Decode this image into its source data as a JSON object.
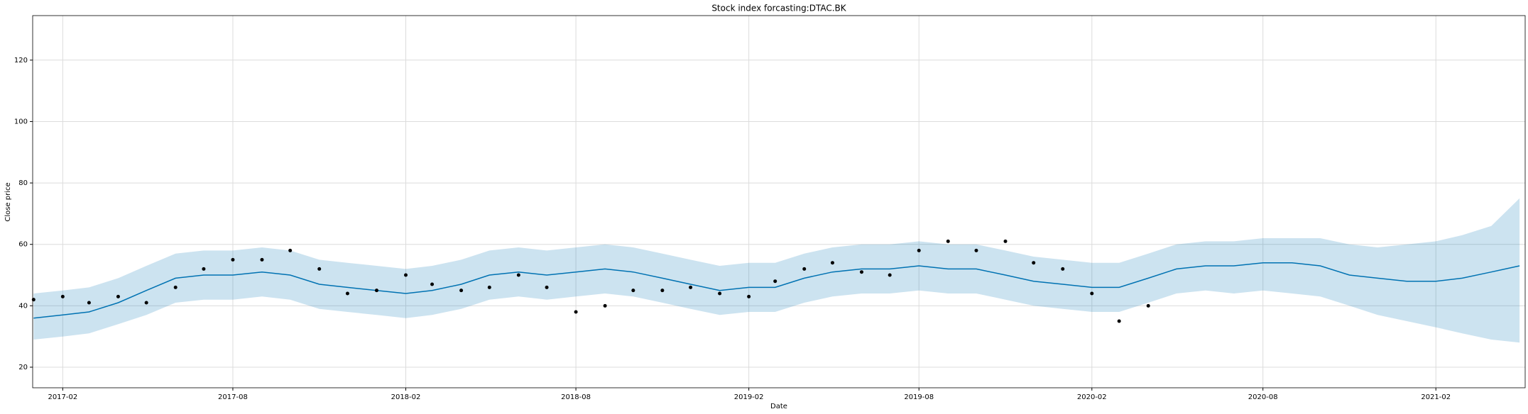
{
  "chart_data": {
    "type": "forecast",
    "title": "Stock index forcasting:DTAC.BK",
    "x_label": "Date",
    "y_label": "Close price",
    "x": [
      "2017-01",
      "2017-02",
      "2017-03",
      "2017-04",
      "2017-05",
      "2017-06",
      "2017-07",
      "2017-08",
      "2017-09",
      "2017-10",
      "2017-11",
      "2017-12",
      "2018-01",
      "2018-02",
      "2018-03",
      "2018-04",
      "2018-05",
      "2018-06",
      "2018-07",
      "2018-08",
      "2018-09",
      "2018-10",
      "2018-11",
      "2018-12",
      "2019-01",
      "2019-02",
      "2019-03",
      "2019-04",
      "2019-05",
      "2019-06",
      "2019-07",
      "2019-08",
      "2019-09",
      "2019-10",
      "2019-11",
      "2019-12",
      "2020-01",
      "2020-02",
      "2020-03",
      "2020-04",
      "2020-05",
      "2020-06",
      "2020-07",
      "2020-08",
      "2020-09",
      "2020-10",
      "2020-11",
      "2020-12",
      "2021-01",
      "2021-02",
      "2021-03",
      "2021-04",
      "2021-05"
    ],
    "series": [
      {
        "type": "band",
        "color": "#0072b2",
        "upper": [
          44,
          45,
          46,
          49,
          53,
          57,
          58,
          58,
          59,
          58,
          55,
          54,
          53,
          52,
          53,
          55,
          58,
          59,
          58,
          59,
          60,
          59,
          57,
          55,
          53,
          54,
          54,
          57,
          59,
          60,
          60,
          61,
          60,
          60,
          58,
          56,
          55,
          54,
          54,
          57,
          60,
          61,
          61,
          62,
          62,
          62,
          60,
          59,
          60,
          61,
          63,
          66,
          75
        ],
        "lower": [
          29,
          30,
          31,
          34,
          37,
          41,
          42,
          42,
          43,
          42,
          39,
          38,
          37,
          36,
          37,
          39,
          42,
          43,
          42,
          43,
          44,
          43,
          41,
          39,
          37,
          38,
          38,
          41,
          43,
          44,
          44,
          45,
          44,
          44,
          42,
          40,
          39,
          38,
          38,
          41,
          44,
          45,
          44,
          45,
          44,
          43,
          40,
          37,
          35,
          33,
          31,
          29,
          28
        ]
      },
      {
        "type": "line",
        "color": "#0072b2",
        "values": [
          36,
          37,
          38,
          41,
          45,
          49,
          50,
          50,
          51,
          50,
          47,
          46,
          45,
          44,
          45,
          47,
          50,
          51,
          50,
          51,
          52,
          51,
          49,
          47,
          45,
          46,
          46,
          49,
          51,
          52,
          52,
          53,
          52,
          52,
          50,
          48,
          47,
          46,
          46,
          49,
          52,
          53,
          53,
          54,
          54,
          53,
          50,
          49,
          48,
          48,
          49,
          51,
          53
        ]
      },
      {
        "type": "scatter",
        "color": "#000000",
        "values": [
          42,
          43,
          41,
          43,
          41,
          46,
          52,
          55,
          55,
          58,
          52,
          44,
          45,
          50,
          47,
          45,
          46,
          50,
          46,
          38,
          40,
          45,
          45,
          46,
          44,
          43,
          48,
          52,
          54,
          51,
          50,
          58,
          61,
          58,
          61,
          54,
          52,
          44,
          35,
          40,
          null,
          null,
          null,
          null,
          null,
          null,
          null,
          null,
          null,
          null,
          null,
          null,
          null
        ]
      }
    ],
    "xlim": [
      "2016-12-31",
      "2021-05-07"
    ],
    "xticks": [
      {
        "value": "2017-02-01",
        "label": "2017-02"
      },
      {
        "value": "2017-08-01",
        "label": "2017-08"
      },
      {
        "value": "2018-02-01",
        "label": "2018-02"
      },
      {
        "value": "2018-08-01",
        "label": "2018-08"
      },
      {
        "value": "2019-02-01",
        "label": "2019-02"
      },
      {
        "value": "2019-08-01",
        "label": "2019-08"
      },
      {
        "value": "2020-02-01",
        "label": "2020-02"
      },
      {
        "value": "2020-08-01",
        "label": "2020-08"
      },
      {
        "value": "2021-02-01",
        "label": "2021-02"
      }
    ],
    "ylim": [
      13.3,
      134.5
    ],
    "yticks": [
      20,
      40,
      60,
      80,
      100,
      120
    ],
    "grid": true
  }
}
